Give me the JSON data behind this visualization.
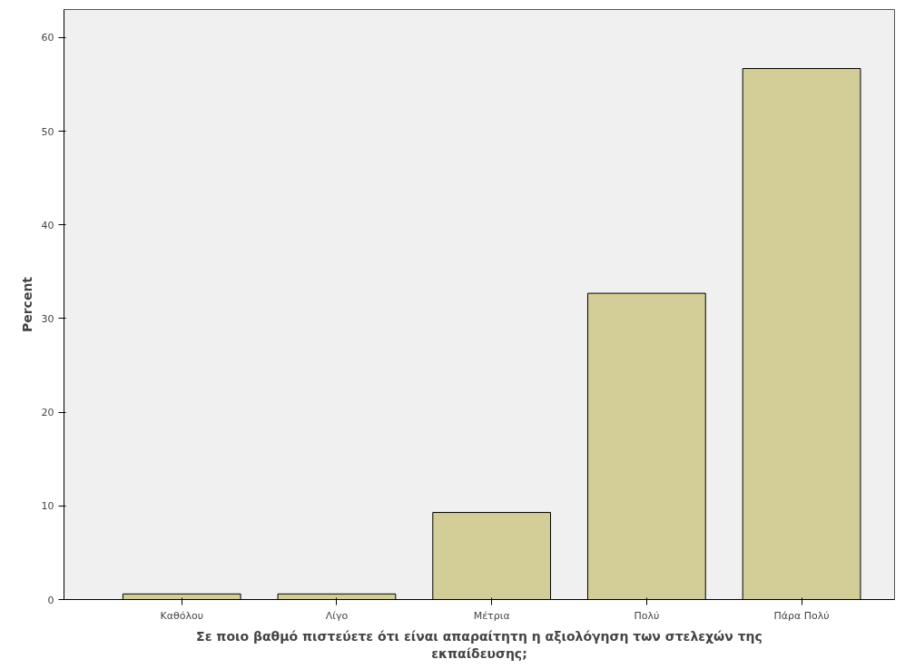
{
  "chart_data": {
    "type": "bar",
    "xlabel": "Σε ποιο βαθμό πιστεύετε ότι είναι απαραίτητη η αξιολόγηση των στελεχών της εκπαίδευσης;",
    "ylabel": "Percent",
    "categories": [
      "Καθόλου",
      "Λίγο",
      "Μέτρια",
      "Πολύ",
      "Πάρα Πολύ"
    ],
    "values": [
      0.6,
      0.6,
      9.3,
      32.7,
      56.7
    ],
    "color": "#d3ce97",
    "ylim": [
      0,
      63
    ],
    "yticks": [
      0,
      10,
      20,
      30,
      40,
      50,
      60
    ],
    "grid": false
  }
}
